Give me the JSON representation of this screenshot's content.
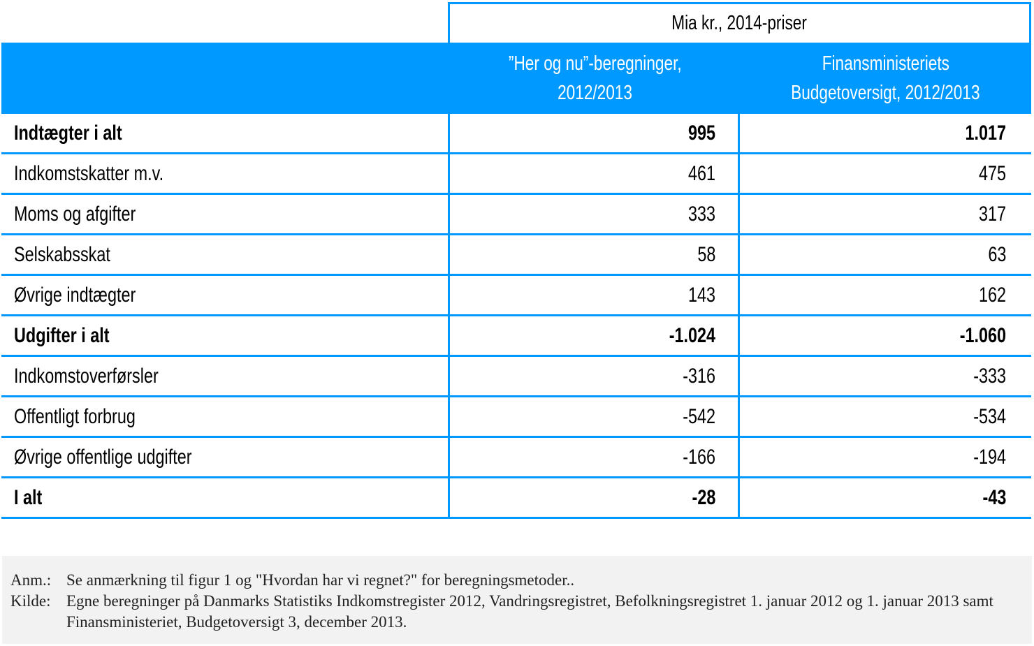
{
  "table": {
    "unit_label": "Mia kr., 2014-priser",
    "col_headers": [
      {
        "line1": "”Her og nu”-beregninger,",
        "line2": "2012/2013"
      },
      {
        "line1": "Finansministeriets",
        "line2": "Budgetoversigt, 2012/2013"
      }
    ],
    "rows": [
      {
        "label": "Indtægter i alt",
        "v1": "995",
        "v2": "1.017",
        "bold": true
      },
      {
        "label": "Indkomstskatter m.v.",
        "v1": "461",
        "v2": "475",
        "bold": false
      },
      {
        "label": "Moms og afgifter",
        "v1": "333",
        "v2": "317",
        "bold": false
      },
      {
        "label": "Selskabsskat",
        "v1": "58",
        "v2": "63",
        "bold": false
      },
      {
        "label": "Øvrige indtægter",
        "v1": "143",
        "v2": "162",
        "bold": false
      },
      {
        "label": "Udgifter i alt",
        "v1": "-1.024",
        "v2": "-1.060",
        "bold": true
      },
      {
        "label": "Indkomstoverførsler",
        "v1": "-316",
        "v2": "-333",
        "bold": false
      },
      {
        "label": "Offentligt forbrug",
        "v1": "-542",
        "v2": "-534",
        "bold": false
      },
      {
        "label": "Øvrige offentlige udgifter",
        "v1": "-166",
        "v2": "-194",
        "bold": false
      },
      {
        "label": "I alt",
        "v1": "-28",
        "v2": "-43",
        "bold": true
      }
    ]
  },
  "notes": {
    "anm_label": "Anm.:",
    "anm_text": "Se anmærkning til figur 1 og \"Hvordan har vi regnet?\" for beregningsmetoder..",
    "kilde_label": "Kilde:",
    "kilde_text": "Egne beregninger på Danmarks Statistiks Indkomstregister 2012, Vandringsregistret,   Befolkningsregistret 1. januar 2012 og 1. januar 2013 samt Finansministeriet, Budgetoversigt 3, december 2013."
  },
  "colors": {
    "accent": "#0099ff",
    "note_background": "#f2f2f2"
  }
}
